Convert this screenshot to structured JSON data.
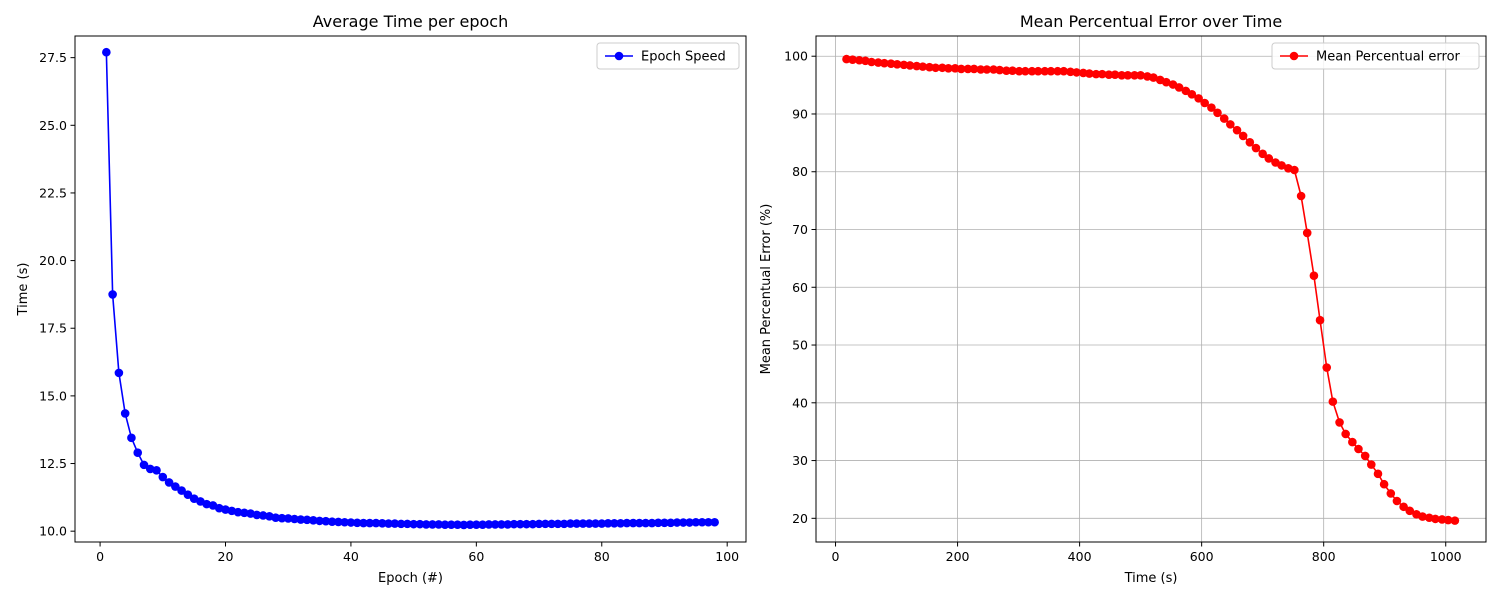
{
  "chart_data": [
    {
      "type": "line",
      "title": "Average Time per epoch",
      "xlabel": "Epoch (#)",
      "ylabel": "Time (s)",
      "xlim": [
        -4,
        103
      ],
      "ylim": [
        9.6,
        28.3
      ],
      "xticks": [
        0,
        20,
        40,
        60,
        80,
        100
      ],
      "yticks": [
        10.0,
        12.5,
        15.0,
        17.5,
        20.0,
        22.5,
        25.0,
        27.5
      ],
      "ytick_labels": [
        "10.0",
        "12.5",
        "15.0",
        "17.5",
        "20.0",
        "22.5",
        "25.0",
        "27.5"
      ],
      "grid": false,
      "legend_position": "top-right",
      "series": [
        {
          "name": "Epoch Speed",
          "color": "#0000ff",
          "x": [
            1,
            2,
            3,
            4,
            5,
            6,
            7,
            8,
            9,
            10,
            11,
            12,
            13,
            14,
            15,
            16,
            17,
            18,
            19,
            20,
            21,
            22,
            23,
            24,
            25,
            26,
            27,
            28,
            29,
            30,
            31,
            32,
            33,
            34,
            35,
            36,
            37,
            38,
            39,
            40,
            41,
            42,
            43,
            44,
            45,
            46,
            47,
            48,
            49,
            50,
            51,
            52,
            53,
            54,
            55,
            56,
            57,
            58,
            59,
            60,
            61,
            62,
            63,
            64,
            65,
            66,
            67,
            68,
            69,
            70,
            71,
            72,
            73,
            74,
            75,
            76,
            77,
            78,
            79,
            80,
            81,
            82,
            83,
            84,
            85,
            86,
            87,
            88,
            89,
            90,
            91,
            92,
            93,
            94,
            95,
            96,
            97,
            98
          ],
          "y": [
            27.7,
            18.75,
            15.85,
            14.35,
            13.45,
            12.9,
            12.45,
            12.3,
            12.25,
            12.0,
            11.8,
            11.65,
            11.5,
            11.35,
            11.2,
            11.1,
            11.0,
            10.95,
            10.85,
            10.8,
            10.75,
            10.7,
            10.68,
            10.65,
            10.6,
            10.58,
            10.55,
            10.5,
            10.48,
            10.47,
            10.45,
            10.43,
            10.42,
            10.4,
            10.38,
            10.37,
            10.35,
            10.34,
            10.33,
            10.32,
            10.31,
            10.3,
            10.3,
            10.3,
            10.29,
            10.28,
            10.28,
            10.27,
            10.27,
            10.26,
            10.26,
            10.25,
            10.25,
            10.25,
            10.24,
            10.24,
            10.24,
            10.23,
            10.24,
            10.24,
            10.24,
            10.25,
            10.25,
            10.25,
            10.25,
            10.26,
            10.26,
            10.26,
            10.26,
            10.27,
            10.27,
            10.27,
            10.27,
            10.27,
            10.28,
            10.28,
            10.28,
            10.28,
            10.28,
            10.28,
            10.29,
            10.29,
            10.29,
            10.3,
            10.3,
            10.3,
            10.3,
            10.3,
            10.31,
            10.31,
            10.31,
            10.32,
            10.32,
            10.32,
            10.33,
            10.33,
            10.33,
            10.33
          ]
        }
      ]
    },
    {
      "type": "line",
      "title": "Mean Percentual Error over Time",
      "xlabel": "Time (s)",
      "ylabel": "Mean Percentual Error (%)",
      "xlim": [
        -32,
        1066
      ],
      "ylim": [
        15.9,
        103.5
      ],
      "xticks": [
        0,
        200,
        400,
        600,
        800,
        1000
      ],
      "yticks": [
        20,
        30,
        40,
        50,
        60,
        70,
        80,
        90,
        100
      ],
      "grid": true,
      "legend_position": "top-right",
      "series": [
        {
          "name": "Mean Percentual error",
          "color": "#ff0000",
          "x": [
            18,
            28,
            39,
            49,
            59,
            70,
            80,
            91,
            101,
            112,
            122,
            133,
            143,
            154,
            164,
            175,
            185,
            196,
            206,
            217,
            227,
            238,
            248,
            259,
            269,
            280,
            290,
            301,
            311,
            322,
            332,
            343,
            353,
            364,
            374,
            385,
            395,
            406,
            416,
            427,
            437,
            448,
            458,
            469,
            479,
            490,
            500,
            511,
            521,
            532,
            542,
            553,
            563,
            574,
            584,
            595,
            605,
            616,
            626,
            637,
            647,
            658,
            668,
            679,
            689,
            700,
            710,
            721,
            731,
            742,
            752,
            763,
            773,
            784,
            794,
            805,
            815,
            826,
            836,
            847,
            857,
            868,
            878,
            889,
            899,
            910,
            920,
            931,
            941,
            952,
            962,
            973,
            983,
            994,
            1004,
            1015
          ],
          "y": [
            99.5,
            99.4,
            99.3,
            99.2,
            99.0,
            98.9,
            98.8,
            98.7,
            98.6,
            98.5,
            98.4,
            98.3,
            98.2,
            98.1,
            98.0,
            98.0,
            97.9,
            97.9,
            97.8,
            97.8,
            97.8,
            97.7,
            97.7,
            97.7,
            97.6,
            97.5,
            97.5,
            97.4,
            97.4,
            97.4,
            97.4,
            97.4,
            97.4,
            97.4,
            97.4,
            97.3,
            97.2,
            97.1,
            97.0,
            96.9,
            96.9,
            96.8,
            96.8,
            96.7,
            96.7,
            96.7,
            96.7,
            96.5,
            96.3,
            95.9,
            95.5,
            95.1,
            94.6,
            94.0,
            93.4,
            92.7,
            91.9,
            91.1,
            90.2,
            89.2,
            88.2,
            87.2,
            86.2,
            85.1,
            84.1,
            83.1,
            82.3,
            81.6,
            81.1,
            80.6,
            80.3,
            75.8,
            69.4,
            62.0,
            54.3,
            46.1,
            40.2,
            36.6,
            34.6,
            33.2,
            32.0,
            30.8,
            29.3,
            27.7,
            25.9,
            24.3,
            23.0,
            22.0,
            21.3,
            20.7,
            20.3,
            20.1,
            19.9,
            19.8,
            19.7,
            19.6
          ]
        }
      ]
    }
  ]
}
